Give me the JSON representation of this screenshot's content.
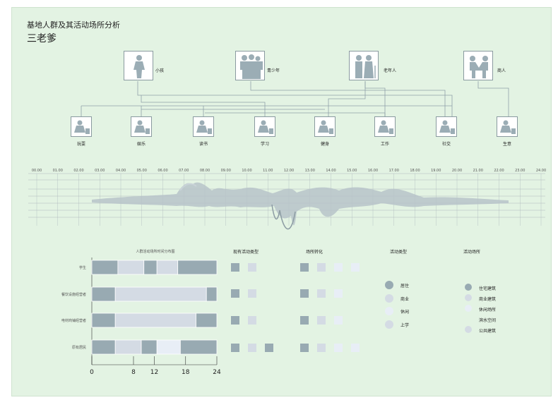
{
  "title": "基地人群及其活动场所分析",
  "subtitle": "三老爹",
  "groups": [
    {
      "label": "小孩",
      "icon": "child-silhouette-icon"
    },
    {
      "label": "青少年",
      "icon": "youth-group-icon"
    },
    {
      "label": "老年人",
      "icon": "elderly-group-icon"
    },
    {
      "label": "商人",
      "icon": "merchants-icon"
    }
  ],
  "activities": [
    {
      "label": "玩耍",
      "icon": "play-icon"
    },
    {
      "label": "娱乐",
      "icon": "entertainment-icon"
    },
    {
      "label": "读书",
      "icon": "reading-icon"
    },
    {
      "label": "学习",
      "icon": "study-icon"
    },
    {
      "label": "健身",
      "icon": "fitness-icon"
    },
    {
      "label": "工作",
      "icon": "work-icon"
    },
    {
      "label": "社交",
      "icon": "social-icon"
    },
    {
      "label": "生意",
      "icon": "business-icon"
    }
  ],
  "time_axis": [
    "00.00",
    "01.00",
    "02.00",
    "03.00",
    "04.00",
    "05.00",
    "06.00",
    "07.00",
    "08.00",
    "09.00",
    "10.00",
    "11.00",
    "12.00",
    "13.00",
    "14.00",
    "15.00",
    "16.00",
    "17.00",
    "18.00",
    "19.00",
    "20.00",
    "21.00",
    "22.00",
    "23.00",
    "24.00"
  ],
  "colors": {
    "dark": "#98aab2",
    "light": "#d4dbe4",
    "lighter": "#e8eef6",
    "board": "#e3f3e3"
  },
  "chart_data": {
    "type": "bar",
    "title": "人群活动场所时间分布图",
    "categories": [
      "学生",
      "餐饮设施经营者",
      "电材商铺经营者",
      "原有居民"
    ],
    "x_ticks": [
      0,
      8,
      12,
      18,
      24
    ],
    "xlim": [
      0,
      24
    ],
    "segments": [
      [
        {
          "start": 0,
          "end": 5,
          "tone": "dark"
        },
        {
          "start": 5,
          "end": 10,
          "tone": "light"
        },
        {
          "start": 10,
          "end": 12.5,
          "tone": "dark"
        },
        {
          "start": 12.5,
          "end": 16.5,
          "tone": "light"
        },
        {
          "start": 16.5,
          "end": 24,
          "tone": "dark"
        }
      ],
      [
        {
          "start": 0,
          "end": 4.5,
          "tone": "dark"
        },
        {
          "start": 4.5,
          "end": 22,
          "tone": "light"
        },
        {
          "start": 22,
          "end": 24,
          "tone": "dark"
        }
      ],
      [
        {
          "start": 0,
          "end": 4.5,
          "tone": "dark"
        },
        {
          "start": 4.5,
          "end": 20,
          "tone": "light"
        },
        {
          "start": 20,
          "end": 24,
          "tone": "dark"
        }
      ],
      [
        {
          "start": 0,
          "end": 4.5,
          "tone": "dark"
        },
        {
          "start": 4.5,
          "end": 9.5,
          "tone": "light"
        },
        {
          "start": 9.5,
          "end": 12.5,
          "tone": "dark"
        },
        {
          "start": 12.5,
          "end": 17,
          "tone": "lighter"
        },
        {
          "start": 17,
          "end": 24,
          "tone": "dark"
        }
      ]
    ]
  },
  "columns": {
    "existing": {
      "header": "现有活动类型",
      "rows": [
        [
          "dark",
          "light"
        ],
        [
          "dark",
          "light"
        ],
        [
          "dark",
          "light"
        ],
        [
          "dark",
          "light",
          "dark"
        ]
      ]
    },
    "place": {
      "header": "场所转化",
      "rows": [
        [
          "dark",
          "light",
          "lighter",
          "lighter"
        ],
        [
          "dark",
          "light",
          "lighter"
        ],
        [
          "dark",
          "light",
          "lighter"
        ],
        [
          "dark",
          "light",
          "lighter",
          "lighter"
        ]
      ]
    }
  },
  "legend_activity": {
    "header": "活动类型",
    "items": [
      {
        "label": "居住",
        "tone": "dark"
      },
      {
        "label": "商业",
        "tone": "light"
      },
      {
        "label": "休闲",
        "tone": "lighter"
      },
      {
        "label": "上学",
        "tone": "light"
      }
    ]
  },
  "legend_place": {
    "header": "活动场所",
    "items": [
      {
        "label": "住宅建筑",
        "tone": "dark"
      },
      {
        "label": "商业建筑",
        "tone": "light"
      },
      {
        "label": "休闲场所",
        "tone": "lighter"
      },
      {
        "label": "滨水空间",
        "tone": "board"
      },
      {
        "label": "公共建筑",
        "tone": "light"
      }
    ]
  }
}
